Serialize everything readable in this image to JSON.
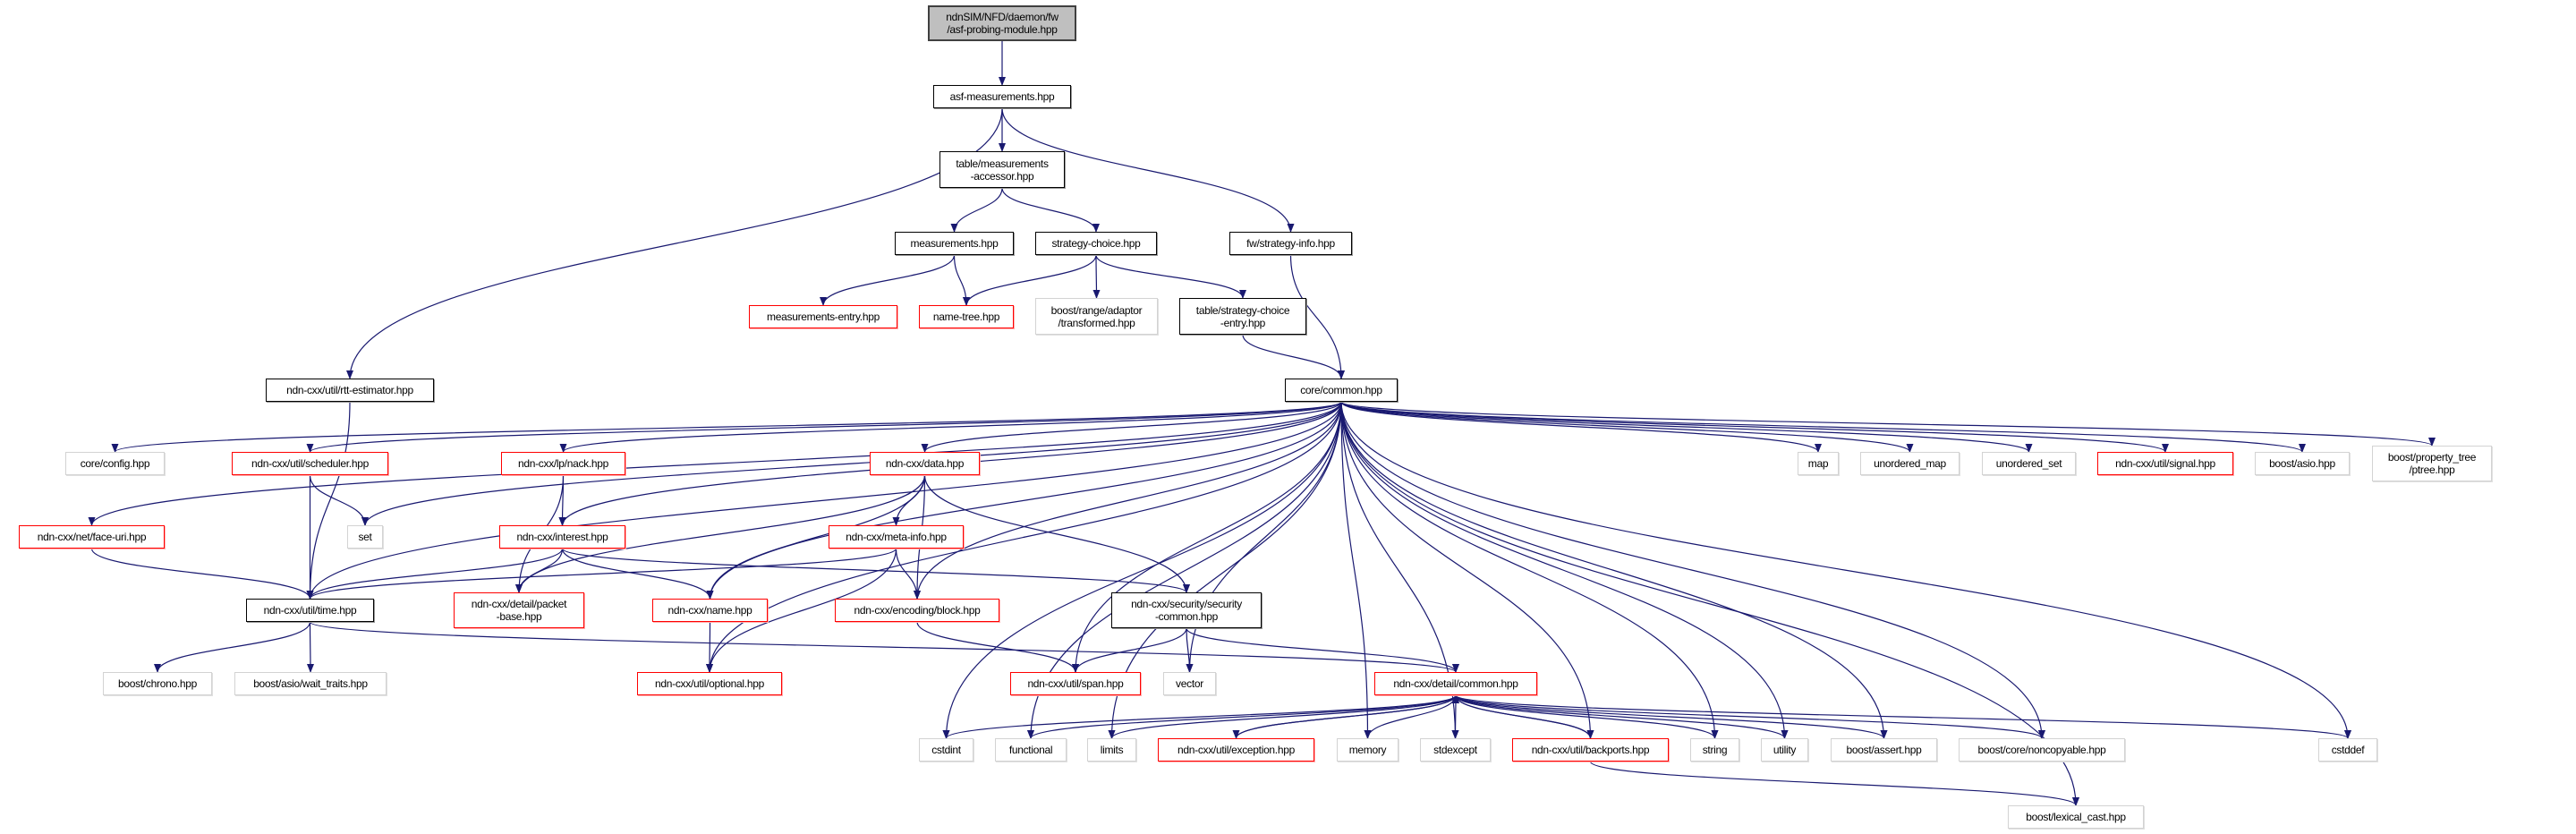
{
  "colors": {
    "edge": "#191970",
    "documented_border": "#000000",
    "undocumented_border": "#ff0000",
    "external_border": "#d3d3d3",
    "root_fill": "#bfbfbf"
  },
  "nodes": [
    {
      "id": "root",
      "label": "ndnSIM/NFD/daemon/fw\n/asf-probing-module.hpp",
      "kind": "main"
    },
    {
      "id": "asf",
      "label": "asf-measurements.hpp",
      "kind": "doc"
    },
    {
      "id": "acc",
      "label": "table/measurements\n-accessor.hpp",
      "kind": "doc"
    },
    {
      "id": "meas",
      "label": "measurements.hpp",
      "kind": "doc"
    },
    {
      "id": "sc",
      "label": "strategy-choice.hpp",
      "kind": "doc"
    },
    {
      "id": "sinfo",
      "label": "fw/strategy-info.hpp",
      "kind": "doc"
    },
    {
      "id": "mentry",
      "label": "measurements-entry.hpp",
      "kind": "nodoc"
    },
    {
      "id": "ntree",
      "label": "name-tree.hpp",
      "kind": "nodoc"
    },
    {
      "id": "transf",
      "label": "boost/range/adaptor\n/transformed.hpp",
      "kind": "ext"
    },
    {
      "id": "scentry",
      "label": "table/strategy-choice\n-entry.hpp",
      "kind": "doc"
    },
    {
      "id": "rtt",
      "label": "ndn-cxx/util/rtt-estimator.hpp",
      "kind": "doc"
    },
    {
      "id": "common",
      "label": "core/common.hpp",
      "kind": "doc"
    },
    {
      "id": "config",
      "label": "core/config.hpp",
      "kind": "ext"
    },
    {
      "id": "sched",
      "label": "ndn-cxx/util/scheduler.hpp",
      "kind": "nodoc"
    },
    {
      "id": "nack",
      "label": "ndn-cxx/lp/nack.hpp",
      "kind": "nodoc"
    },
    {
      "id": "data",
      "label": "ndn-cxx/data.hpp",
      "kind": "nodoc"
    },
    {
      "id": "faceuri",
      "label": "ndn-cxx/net/face-uri.hpp",
      "kind": "nodoc"
    },
    {
      "id": "set",
      "label": "set",
      "kind": "ext"
    },
    {
      "id": "interest",
      "label": "ndn-cxx/interest.hpp",
      "kind": "nodoc"
    },
    {
      "id": "metainfo",
      "label": "ndn-cxx/meta-info.hpp",
      "kind": "nodoc"
    },
    {
      "id": "time",
      "label": "ndn-cxx/util/time.hpp",
      "kind": "doc"
    },
    {
      "id": "packet",
      "label": "ndn-cxx/detail/packet\n-base.hpp",
      "kind": "nodoc"
    },
    {
      "id": "name",
      "label": "ndn-cxx/name.hpp",
      "kind": "nodoc"
    },
    {
      "id": "block",
      "label": "ndn-cxx/encoding/block.hpp",
      "kind": "nodoc"
    },
    {
      "id": "seccommon",
      "label": "ndn-cxx/security/security\n-common.hpp",
      "kind": "doc"
    },
    {
      "id": "chrono",
      "label": "boost/chrono.hpp",
      "kind": "ext"
    },
    {
      "id": "wait",
      "label": "boost/asio/wait_traits.hpp",
      "kind": "ext"
    },
    {
      "id": "optional",
      "label": "ndn-cxx/util/optional.hpp",
      "kind": "nodoc"
    },
    {
      "id": "span",
      "label": "ndn-cxx/util/span.hpp",
      "kind": "nodoc"
    },
    {
      "id": "vector",
      "label": "vector",
      "kind": "ext"
    },
    {
      "id": "dcommon",
      "label": "ndn-cxx/detail/common.hpp",
      "kind": "nodoc"
    },
    {
      "id": "cstdint",
      "label": "cstdint",
      "kind": "ext"
    },
    {
      "id": "functional",
      "label": "functional",
      "kind": "ext"
    },
    {
      "id": "limits",
      "label": "limits",
      "kind": "ext"
    },
    {
      "id": "exception",
      "label": "ndn-cxx/util/exception.hpp",
      "kind": "nodoc"
    },
    {
      "id": "memory",
      "label": "memory",
      "kind": "ext"
    },
    {
      "id": "stdexcept",
      "label": "stdexcept",
      "kind": "ext"
    },
    {
      "id": "backports",
      "label": "ndn-cxx/util/backports.hpp",
      "kind": "nodoc"
    },
    {
      "id": "string",
      "label": "string",
      "kind": "ext"
    },
    {
      "id": "utility",
      "label": "utility",
      "kind": "ext"
    },
    {
      "id": "assert",
      "label": "boost/assert.hpp",
      "kind": "ext"
    },
    {
      "id": "noncopy",
      "label": "boost/core/noncopyable.hpp",
      "kind": "ext"
    },
    {
      "id": "cstddef",
      "label": "cstddef",
      "kind": "ext"
    },
    {
      "id": "lexical",
      "label": "boost/lexical_cast.hpp",
      "kind": "ext"
    },
    {
      "id": "map",
      "label": "map",
      "kind": "ext"
    },
    {
      "id": "umap",
      "label": "unordered_map",
      "kind": "ext"
    },
    {
      "id": "uset",
      "label": "unordered_set",
      "kind": "ext"
    },
    {
      "id": "signal",
      "label": "ndn-cxx/util/signal.hpp",
      "kind": "nodoc"
    },
    {
      "id": "asio",
      "label": "boost/asio.hpp",
      "kind": "ext"
    },
    {
      "id": "ptree",
      "label": "boost/property_tree\n/ptree.hpp",
      "kind": "ext"
    }
  ],
  "edges": [
    [
      "root",
      "asf"
    ],
    [
      "asf",
      "acc"
    ],
    [
      "asf",
      "sinfo"
    ],
    [
      "asf",
      "rtt"
    ],
    [
      "acc",
      "meas"
    ],
    [
      "acc",
      "sc"
    ],
    [
      "meas",
      "mentry"
    ],
    [
      "meas",
      "ntree"
    ],
    [
      "sc",
      "ntree"
    ],
    [
      "sc",
      "transf"
    ],
    [
      "sc",
      "scentry"
    ],
    [
      "scentry",
      "common"
    ],
    [
      "sinfo",
      "common"
    ],
    [
      "rtt",
      "time"
    ],
    [
      "common",
      "config"
    ],
    [
      "common",
      "sched"
    ],
    [
      "common",
      "set"
    ],
    [
      "common",
      "nack"
    ],
    [
      "common",
      "interest"
    ],
    [
      "common",
      "data"
    ],
    [
      "common",
      "faceuri"
    ],
    [
      "common",
      "time"
    ],
    [
      "common",
      "name"
    ],
    [
      "common",
      "optional"
    ],
    [
      "common",
      "block"
    ],
    [
      "common",
      "span"
    ],
    [
      "common",
      "vector"
    ],
    [
      "common",
      "cstdint"
    ],
    [
      "common",
      "functional"
    ],
    [
      "common",
      "limits"
    ],
    [
      "common",
      "memory"
    ],
    [
      "common",
      "stdexcept"
    ],
    [
      "common",
      "backports"
    ],
    [
      "common",
      "string"
    ],
    [
      "common",
      "utility"
    ],
    [
      "common",
      "assert"
    ],
    [
      "common",
      "noncopy"
    ],
    [
      "common",
      "cstddef"
    ],
    [
      "common",
      "lexical"
    ],
    [
      "common",
      "map"
    ],
    [
      "common",
      "umap"
    ],
    [
      "common",
      "uset"
    ],
    [
      "common",
      "signal"
    ],
    [
      "common",
      "asio"
    ],
    [
      "common",
      "ptree"
    ],
    [
      "sched",
      "time"
    ],
    [
      "sched",
      "set"
    ],
    [
      "nack",
      "interest"
    ],
    [
      "nack",
      "packet"
    ],
    [
      "data",
      "metainfo"
    ],
    [
      "data",
      "name"
    ],
    [
      "data",
      "block"
    ],
    [
      "data",
      "seccommon"
    ],
    [
      "data",
      "packet"
    ],
    [
      "interest",
      "time"
    ],
    [
      "interest",
      "packet"
    ],
    [
      "interest",
      "name"
    ],
    [
      "interest",
      "seccommon"
    ],
    [
      "metainfo",
      "time"
    ],
    [
      "metainfo",
      "block"
    ],
    [
      "metainfo",
      "optional"
    ],
    [
      "faceuri",
      "time"
    ],
    [
      "time",
      "chrono"
    ],
    [
      "time",
      "wait"
    ],
    [
      "time",
      "dcommon"
    ],
    [
      "name",
      "optional"
    ],
    [
      "block",
      "span"
    ],
    [
      "seccommon",
      "span"
    ],
    [
      "seccommon",
      "vector"
    ],
    [
      "seccommon",
      "dcommon"
    ],
    [
      "dcommon",
      "cstdint"
    ],
    [
      "dcommon",
      "functional"
    ],
    [
      "dcommon",
      "limits"
    ],
    [
      "dcommon",
      "exception"
    ],
    [
      "dcommon",
      "memory"
    ],
    [
      "dcommon",
      "stdexcept"
    ],
    [
      "dcommon",
      "backports"
    ],
    [
      "dcommon",
      "string"
    ],
    [
      "dcommon",
      "utility"
    ],
    [
      "dcommon",
      "assert"
    ],
    [
      "dcommon",
      "noncopy"
    ],
    [
      "dcommon",
      "cstddef"
    ],
    [
      "exception",
      "dcommon"
    ],
    [
      "backports",
      "dcommon"
    ],
    [
      "backports",
      "lexical"
    ]
  ]
}
